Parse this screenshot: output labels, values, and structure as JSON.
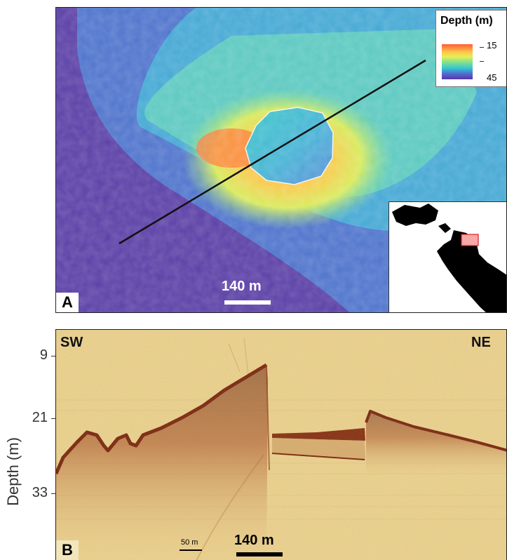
{
  "panel_a": {
    "letter": "A",
    "legend": {
      "title": "Depth (m)",
      "max_label": "15",
      "min_label": "45",
      "colors": [
        "#ff5d34",
        "#ffc44a",
        "#e4ef5a",
        "#7fe08e",
        "#38c7cf",
        "#4e6ed0",
        "#5b34a8"
      ]
    },
    "scale_bar_label": "140 m"
  },
  "panel_b": {
    "letter": "B",
    "dir_left": "SW",
    "dir_right": "NE",
    "scale_small_label": "50 m",
    "scale_big_label": "140 m",
    "axis_title": "Depth (m)",
    "y_ticks": [
      "9",
      "21",
      "33"
    ]
  }
}
